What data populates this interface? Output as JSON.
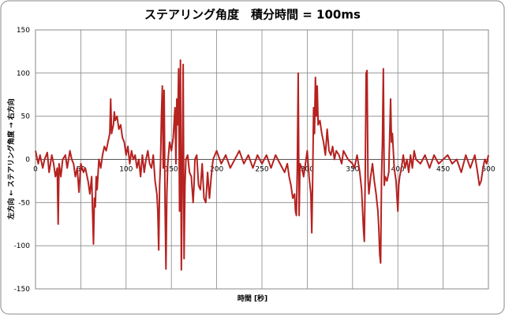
{
  "chart_data": {
    "type": "line",
    "title": "ステアリング角度　積分時間 = 100ms",
    "x_label": "時間 [秒]",
    "y_label": "左方向 ← ステアリング角度 → 右方向",
    "xlim": [
      0,
      500
    ],
    "xticks": [
      0,
      50,
      100,
      150,
      200,
      250,
      300,
      350,
      400,
      450,
      500
    ],
    "ylim": [
      -150,
      150
    ],
    "yticks": [
      -150,
      -100,
      -50,
      0,
      50,
      100,
      150
    ],
    "grid": true,
    "series": [
      {
        "color": "#b52220",
        "x": [
          0,
          3,
          5,
          8,
          10,
          13,
          15,
          18,
          20,
          22,
          24,
          25,
          26,
          28,
          30,
          33,
          35,
          38,
          40,
          42,
          44,
          46,
          48,
          50,
          53,
          55,
          58,
          60,
          62,
          63,
          64,
          65,
          66,
          67,
          68,
          70,
          72,
          74,
          76,
          78,
          80,
          82,
          83,
          84,
          86,
          87,
          88,
          90,
          92,
          94,
          96,
          98,
          100,
          102,
          104,
          106,
          108,
          110,
          112,
          114,
          116,
          118,
          120,
          122,
          124,
          126,
          128,
          130,
          132,
          134,
          135,
          136,
          137,
          138,
          139,
          140,
          141,
          142,
          143,
          144,
          145,
          146,
          148,
          150,
          152,
          154,
          155,
          156,
          157,
          158,
          159,
          160,
          161,
          162,
          163,
          164,
          165,
          166,
          168,
          170,
          172,
          174,
          175,
          176,
          178,
          180,
          182,
          184,
          186,
          188,
          190,
          192,
          194,
          196,
          200,
          205,
          210,
          215,
          220,
          225,
          230,
          235,
          240,
          245,
          250,
          255,
          260,
          265,
          270,
          275,
          278,
          280,
          282,
          284,
          286,
          287,
          288,
          289,
          290,
          291,
          292,
          294,
          296,
          298,
          300,
          302,
          304,
          305,
          306,
          307,
          308,
          309,
          310,
          311,
          312,
          314,
          316,
          318,
          320,
          322,
          324,
          326,
          328,
          330,
          332,
          335,
          338,
          340,
          345,
          350,
          352,
          355,
          358,
          360,
          362,
          363,
          364,
          365,
          366,
          367,
          368,
          370,
          372,
          374,
          376,
          378,
          379,
          380,
          381,
          382,
          383,
          384,
          385,
          386,
          388,
          390,
          392,
          393,
          394,
          396,
          398,
          400,
          401,
          402,
          404,
          406,
          408,
          410,
          412,
          414,
          416,
          418,
          420,
          425,
          430,
          435,
          440,
          445,
          450,
          455,
          460,
          465,
          470,
          475,
          480,
          485,
          488,
          490,
          492,
          494,
          496,
          498,
          500
        ],
        "values": [
          10,
          -5,
          5,
          -10,
          0,
          8,
          -15,
          5,
          -5,
          -20,
          -10,
          -75,
          -5,
          -20,
          0,
          5,
          -10,
          10,
          0,
          -5,
          -20,
          -10,
          -38,
          -5,
          -15,
          -10,
          -25,
          -40,
          -20,
          -60,
          -98,
          -45,
          -55,
          -20,
          -35,
          0,
          -10,
          5,
          15,
          10,
          20,
          30,
          70,
          30,
          40,
          55,
          45,
          50,
          35,
          40,
          25,
          20,
          5,
          15,
          -5,
          10,
          0,
          5,
          -10,
          0,
          -20,
          5,
          -15,
          0,
          10,
          -5,
          -10,
          5,
          -25,
          -40,
          -60,
          -105,
          -30,
          -5,
          50,
          85,
          -10,
          80,
          -50,
          -127,
          -40,
          -5,
          20,
          10,
          25,
          60,
          -5,
          70,
          40,
          105,
          -60,
          115,
          -128,
          -20,
          110,
          -115,
          -30,
          0,
          5,
          -15,
          -20,
          -50,
          -30,
          0,
          5,
          -30,
          -35,
          -5,
          -45,
          -50,
          -15,
          -45,
          -20,
          0,
          10,
          -5,
          5,
          -10,
          0,
          10,
          -5,
          5,
          -10,
          5,
          -5,
          5,
          -10,
          5,
          -5,
          -15,
          -5,
          -20,
          -30,
          -45,
          -40,
          -60,
          -65,
          -10,
          100,
          -65,
          -5,
          -10,
          -20,
          -5,
          10,
          -20,
          -40,
          -85,
          -20,
          60,
          30,
          95,
          50,
          85,
          40,
          45,
          30,
          20,
          5,
          35,
          10,
          5,
          15,
          0,
          10,
          5,
          -5,
          10,
          0,
          -5,
          -10,
          5,
          -15,
          -35,
          -80,
          -95,
          -20,
          100,
          103,
          -20,
          -40,
          -20,
          -5,
          -25,
          -40,
          -60,
          -80,
          -110,
          -120,
          -20,
          20,
          105,
          -30,
          -20,
          -25,
          -15,
          70,
          20,
          30,
          -10,
          -25,
          -60,
          -30,
          -20,
          -10,
          5,
          -10,
          0,
          -15,
          5,
          -10,
          10,
          0,
          -5,
          5,
          -10,
          5,
          -5,
          0,
          5,
          -5,
          0,
          -15,
          5,
          -10,
          5,
          -15,
          -30,
          -25,
          -10,
          0,
          -5,
          5
        ]
      }
    ]
  }
}
